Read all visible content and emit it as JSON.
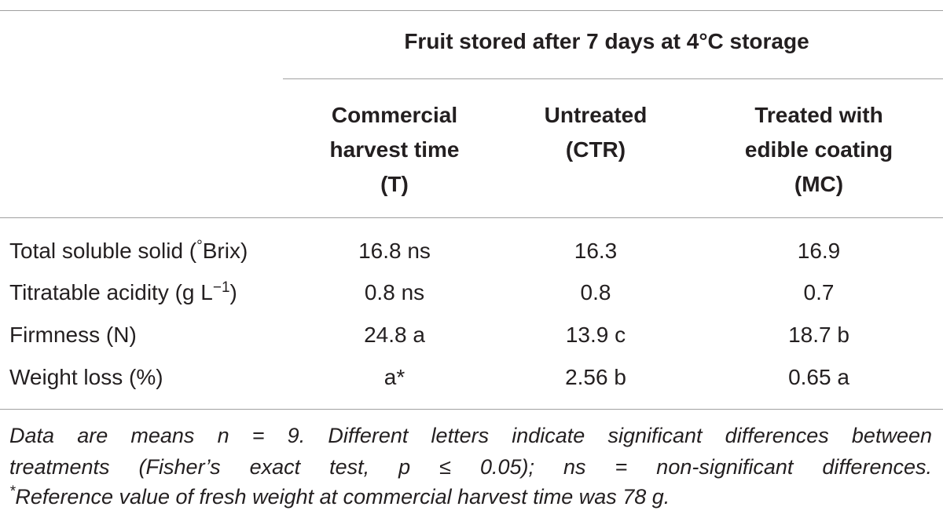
{
  "table": {
    "group_header": "Fruit stored after 7 days at 4°C storage",
    "columns": [
      [
        "Commercial",
        "harvest time",
        "(T)"
      ],
      [
        "Untreated",
        "(CTR)"
      ],
      [
        "Treated with",
        "edible coating",
        "(MC)"
      ]
    ],
    "rows": [
      [
        {
          "text": "Total soluble solid (",
          "sup": "°",
          "tail": "Brix)"
        },
        "16.8 ns",
        "16.3",
        "16.9"
      ],
      [
        {
          "text": "Titratable acidity (g L",
          "sup": "−1",
          "tail": ")"
        },
        "0.8 ns",
        "0.8",
        "0.7"
      ],
      [
        {
          "text": "Firmness (N)"
        },
        "24.8 a",
        "13.9 c",
        "18.7 b"
      ],
      [
        {
          "text": "Weight loss (%)"
        },
        "a*",
        "2.56 b",
        "0.65 a"
      ]
    ]
  },
  "footnote": [
    "Data are means n = 9. Different letters indicate significant differences between",
    "treatments (Fisher’s exact test, p ≤ 0.05); ns = non-significant differences.",
    {
      "mark": "*",
      "text": "Reference value of fresh weight at commercial harvest time was 78 g."
    }
  ]
}
